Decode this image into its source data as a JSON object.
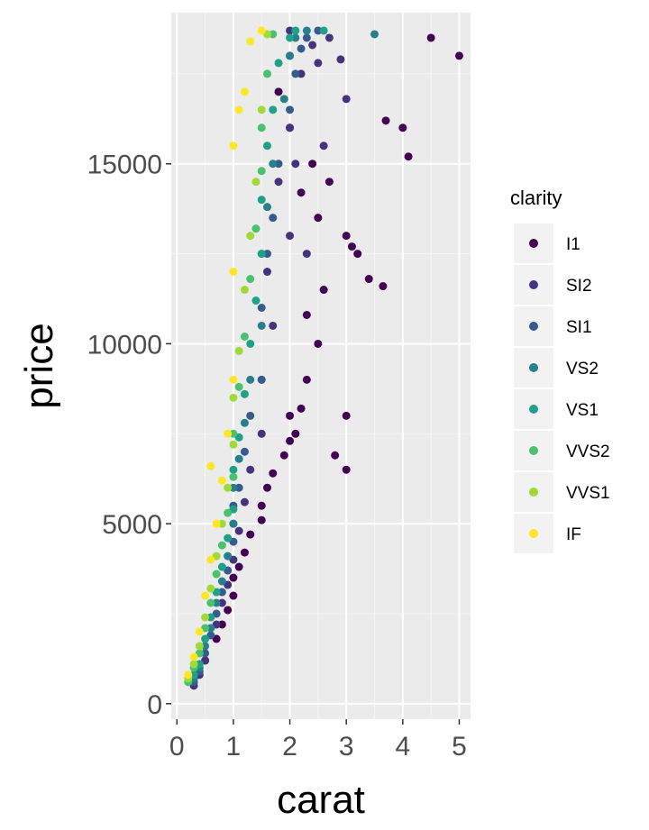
{
  "chart_data": {
    "type": "scatter",
    "xlabel": "carat",
    "ylabel": "price",
    "xlim": [
      -0.1,
      5.2
    ],
    "ylim": [
      -430,
      19200
    ],
    "x_ticks": [
      0,
      1,
      2,
      3,
      4,
      5
    ],
    "y_ticks": [
      0,
      5000,
      10000,
      15000
    ],
    "grid": true,
    "legend": {
      "title": "clarity",
      "position": "right",
      "entries": [
        "I1",
        "SI2",
        "SI1",
        "VS2",
        "VS1",
        "VVS2",
        "VVS1",
        "IF"
      ]
    },
    "colors": {
      "I1": "#440154",
      "SI2": "#46337e",
      "SI1": "#365c8d",
      "VS2": "#277f8e",
      "VS1": "#1fa187",
      "VVS2": "#4ac16d",
      "VVS1": "#a0da39",
      "IF": "#fde725"
    },
    "panel_background": "#ebebeb",
    "series": [
      {
        "name": "I1",
        "x": [
          0.3,
          0.5,
          0.7,
          0.8,
          0.9,
          1.0,
          1.0,
          1.1,
          1.2,
          1.3,
          1.5,
          1.5,
          1.6,
          1.7,
          1.9,
          2.0,
          2.0,
          2.1,
          2.2,
          2.3,
          2.5,
          2.6,
          2.8,
          3.0,
          3.0,
          3.2,
          3.4,
          3.65,
          3.7,
          4.0,
          4.1,
          4.5,
          5.0,
          2.5,
          2.2,
          2.0,
          1.8,
          2.4,
          2.7,
          3.0,
          3.1,
          2.3
        ],
        "y": [
          600,
          1200,
          1800,
          2200,
          2600,
          3000,
          3500,
          3800,
          4200,
          4700,
          5100,
          5500,
          6000,
          6400,
          6900,
          7300,
          8000,
          7500,
          8200,
          9000,
          10000,
          11500,
          6900,
          6500,
          8000,
          12500,
          11800,
          11600,
          16200,
          16000,
          15200,
          18500,
          18000,
          13500,
          14200,
          16000,
          17000,
          15000,
          14500,
          13000,
          12700,
          10800
        ]
      },
      {
        "name": "SI2",
        "x": [
          0.3,
          0.4,
          0.5,
          0.7,
          0.8,
          0.9,
          1.0,
          1.0,
          1.1,
          1.2,
          1.3,
          1.5,
          1.5,
          1.7,
          2.0,
          2.0,
          2.1,
          2.2,
          2.4,
          2.5,
          2.7,
          2.9,
          3.0,
          2.0,
          1.8,
          1.6,
          2.3,
          2.6
        ],
        "y": [
          500,
          800,
          1200,
          2200,
          2800,
          3300,
          4000,
          5000,
          4800,
          5600,
          6500,
          7500,
          9000,
          10500,
          13000,
          16000,
          15000,
          17500,
          18300,
          17800,
          18500,
          17900,
          16800,
          18700,
          14500,
          12000,
          12500,
          15500
        ]
      },
      {
        "name": "SI1",
        "x": [
          0.3,
          0.4,
          0.5,
          0.6,
          0.7,
          0.8,
          0.9,
          1.0,
          1.0,
          1.1,
          1.2,
          1.3,
          1.5,
          1.5,
          1.6,
          1.7,
          1.8,
          2.0,
          2.0,
          2.1,
          2.2,
          2.3,
          2.5
        ],
        "y": [
          600,
          900,
          1400,
          1900,
          2500,
          3100,
          3700,
          4500,
          5500,
          6000,
          7000,
          8000,
          9000,
          11000,
          12500,
          13500,
          15000,
          16500,
          18000,
          17500,
          18200,
          18500,
          18700
        ]
      },
      {
        "name": "VS2",
        "x": [
          0.3,
          0.4,
          0.5,
          0.6,
          0.7,
          0.8,
          0.9,
          1.0,
          1.0,
          1.1,
          1.2,
          1.3,
          1.5,
          1.5,
          1.6,
          1.7,
          1.9,
          2.0,
          2.1,
          2.3,
          3.5
        ],
        "y": [
          700,
          1000,
          1600,
          2100,
          2800,
          3400,
          4100,
          5000,
          6000,
          6800,
          7800,
          9000,
          10500,
          12500,
          13800,
          15000,
          16800,
          18000,
          18500,
          18700,
          18600
        ]
      },
      {
        "name": "VS1",
        "x": [
          0.3,
          0.4,
          0.5,
          0.6,
          0.7,
          0.8,
          0.9,
          1.0,
          1.0,
          1.1,
          1.2,
          1.3,
          1.4,
          1.5,
          1.5,
          1.6,
          1.7,
          1.8,
          2.0,
          2.1,
          2.6
        ],
        "y": [
          800,
          1100,
          1800,
          2400,
          3100,
          3800,
          4600,
          5400,
          6500,
          7400,
          8600,
          10000,
          11200,
          12500,
          14000,
          15500,
          16500,
          17800,
          18500,
          18700,
          18700
        ]
      },
      {
        "name": "VVS2",
        "x": [
          0.2,
          0.3,
          0.4,
          0.5,
          0.6,
          0.7,
          0.8,
          0.9,
          1.0,
          1.0,
          1.1,
          1.2,
          1.3,
          1.4,
          1.5,
          1.5,
          1.6,
          1.7
        ],
        "y": [
          600,
          1000,
          1400,
          2100,
          2800,
          3600,
          4400,
          5300,
          6300,
          7500,
          8800,
          10200,
          11800,
          13200,
          14800,
          16000,
          17500,
          18600
        ]
      },
      {
        "name": "VVS1",
        "x": [
          0.2,
          0.3,
          0.4,
          0.5,
          0.6,
          0.7,
          0.8,
          0.9,
          1.0,
          1.0,
          1.1,
          1.2,
          1.3,
          1.4,
          1.5,
          1.6
        ],
        "y": [
          700,
          1100,
          1600,
          2400,
          3200,
          4100,
          5000,
          6000,
          7200,
          8500,
          9800,
          11500,
          13000,
          14500,
          16500,
          18600
        ]
      },
      {
        "name": "IF",
        "x": [
          0.2,
          0.3,
          0.4,
          0.5,
          0.6,
          0.6,
          0.7,
          0.8,
          0.9,
          1.0,
          1.0,
          1.0,
          1.1,
          1.2,
          1.3,
          1.5
        ],
        "y": [
          800,
          1300,
          2000,
          3000,
          4000,
          6600,
          5000,
          6200,
          7500,
          9000,
          12000,
          15500,
          16500,
          17000,
          18400,
          18700
        ]
      }
    ]
  }
}
